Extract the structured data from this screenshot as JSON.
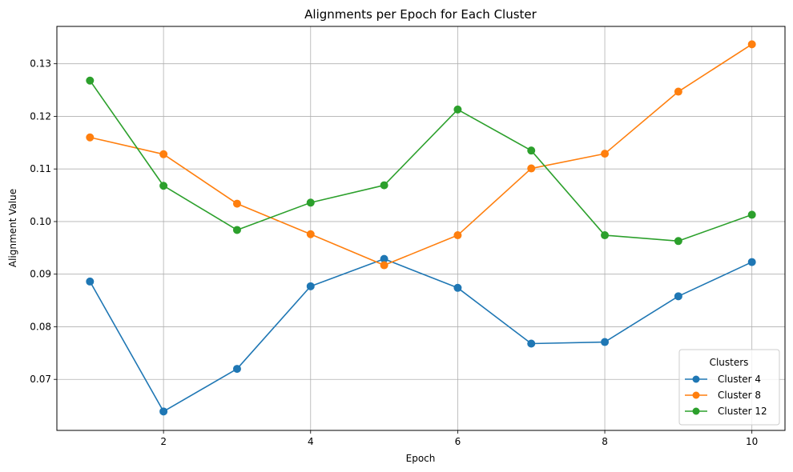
{
  "chart_data": {
    "type": "line",
    "title": "Alignments per Epoch for Each Cluster",
    "xlabel": "Epoch",
    "ylabel": "Alignment Value",
    "x": [
      1,
      2,
      3,
      4,
      5,
      6,
      7,
      8,
      9,
      10
    ],
    "xlim": [
      0.55,
      10.45
    ],
    "ylim": [
      0.0603,
      0.1371
    ],
    "xticks": [
      2,
      4,
      6,
      8,
      10
    ],
    "yticks": [
      0.07,
      0.08,
      0.09,
      0.1,
      0.11,
      0.12,
      0.13
    ],
    "ytick_labels": [
      "0.07",
      "0.08",
      "0.09",
      "0.10",
      "0.11",
      "0.12",
      "0.13"
    ],
    "grid": true,
    "legend": {
      "title": "Clusters",
      "placement": "lower-right"
    },
    "series": [
      {
        "name": "Cluster 4",
        "color": "#1f77b4",
        "marker": "circle",
        "values": [
          0.0886,
          0.0639,
          0.072,
          0.0877,
          0.0929,
          0.0874,
          0.0768,
          0.0771,
          0.0858,
          0.0923
        ]
      },
      {
        "name": "Cluster 8",
        "color": "#ff7f0e",
        "marker": "circle",
        "values": [
          0.116,
          0.1128,
          0.1034,
          0.0976,
          0.0917,
          0.0974,
          0.1101,
          0.1129,
          0.1247,
          0.1337
        ]
      },
      {
        "name": "Cluster 12",
        "color": "#2ca02c",
        "marker": "circle",
        "values": [
          0.1268,
          0.1068,
          0.0984,
          0.1036,
          0.1069,
          0.1213,
          0.1135,
          0.0974,
          0.0963,
          0.1013
        ]
      }
    ]
  }
}
